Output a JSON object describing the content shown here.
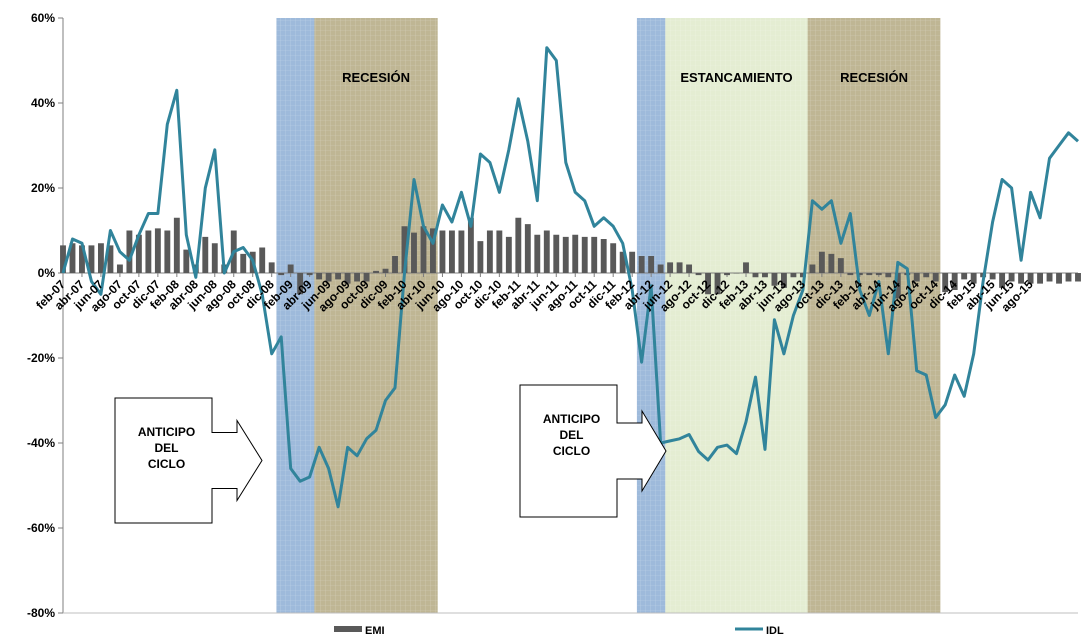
{
  "chart_data": {
    "type": "bar+line",
    "title": "",
    "xlabel": "",
    "ylabel": "",
    "ylim": [
      -0.8,
      0.6
    ],
    "y_ticks": [
      {
        "value": 0.6,
        "label": "60%"
      },
      {
        "value": 0.4,
        "label": "40%"
      },
      {
        "value": 0.2,
        "label": "20%"
      },
      {
        "value": 0.0,
        "label": "0%"
      },
      {
        "value": -0.2,
        "label": "-20%"
      },
      {
        "value": -0.4,
        "label": "-40%"
      },
      {
        "value": -0.6,
        "label": "-60%"
      },
      {
        "value": -0.8,
        "label": "-80%"
      }
    ],
    "x_start": "feb-07",
    "n_months": 108,
    "x_tick_labels": [
      "feb-07",
      "abr-07",
      "jun-07",
      "ago-07",
      "oct-07",
      "dic-07",
      "feb-08",
      "abr-08",
      "jun-08",
      "ago-08",
      "oct-08",
      "dic-08",
      "feb-09",
      "abr-09",
      "jun-09",
      "ago-09",
      "oct-09",
      "dic-09",
      "feb-10",
      "abr-10",
      "jun-10",
      "ago-10",
      "oct-10",
      "dic-10",
      "feb-11",
      "abr-11",
      "jun-11",
      "ago-11",
      "oct-11",
      "dic-11",
      "feb-12",
      "abr-12",
      "jun-12",
      "ago-12",
      "oct-12",
      "dic-12",
      "feb-13",
      "abr-13",
      "jun-13",
      "ago-13",
      "oct-13",
      "dic-13",
      "feb-14",
      "abr-14",
      "jun-14",
      "ago-14",
      "oct-14",
      "dic-14",
      "feb-15",
      "abr-15",
      "jun-15",
      "ago-15"
    ],
    "series": [
      {
        "name": "EMI",
        "kind": "bar",
        "color": "#595959",
        "values": [
          0.065,
          0.07,
          0.065,
          0.065,
          0.07,
          0.065,
          0.02,
          0.1,
          0.09,
          0.1,
          0.105,
          0.1,
          0.13,
          0.055,
          0.02,
          0.085,
          0.07,
          0.02,
          0.1,
          0.045,
          0.05,
          0.06,
          0.025,
          -0.005,
          0.02,
          -0.05,
          -0.005,
          -0.015,
          -0.02,
          -0.015,
          -0.025,
          -0.02,
          -0.02,
          0.005,
          0.01,
          0.04,
          0.11,
          0.095,
          0.11,
          0.105,
          0.1,
          0.1,
          0.1,
          0.13,
          0.075,
          0.1,
          0.1,
          0.085,
          0.13,
          0.115,
          0.09,
          0.1,
          0.09,
          0.085,
          0.09,
          0.085,
          0.085,
          0.08,
          0.07,
          0.05,
          0.05,
          0.04,
          0.04,
          0.02,
          0.025,
          0.025,
          0.02,
          -0.005,
          -0.05,
          -0.05,
          -0.005,
          0.0,
          0.025,
          -0.01,
          -0.01,
          -0.03,
          -0.035,
          -0.01,
          -0.01,
          0.02,
          0.05,
          0.045,
          0.035,
          -0.005,
          -0.005,
          -0.005,
          -0.005,
          -0.01,
          -0.06,
          -0.005,
          -0.02,
          -0.01,
          -0.02,
          -0.045,
          -0.04,
          -0.015,
          -0.025,
          -0.01,
          -0.015,
          -0.035,
          -0.02,
          -0.025,
          -0.025,
          -0.025,
          -0.02,
          -0.025,
          -0.02,
          -0.02,
          -0.01,
          -0.005,
          0.01,
          0.005,
          0.005,
          0.005
        ]
      },
      {
        "name": "IDL",
        "kind": "line",
        "color": "#31849b",
        "values": [
          0.0,
          0.08,
          0.07,
          -0.02,
          -0.05,
          0.1,
          0.05,
          0.03,
          0.09,
          0.14,
          0.14,
          0.35,
          0.43,
          0.09,
          -0.01,
          0.2,
          0.29,
          0.0,
          0.05,
          0.06,
          0.03,
          -0.05,
          -0.19,
          -0.15,
          -0.46,
          -0.49,
          -0.48,
          -0.41,
          -0.46,
          -0.55,
          -0.41,
          -0.43,
          -0.39,
          -0.37,
          -0.3,
          -0.27,
          0.0,
          0.22,
          0.11,
          0.07,
          0.16,
          0.12,
          0.19,
          0.11,
          0.28,
          0.26,
          0.19,
          0.29,
          0.41,
          0.31,
          0.17,
          0.53,
          0.5,
          0.26,
          0.19,
          0.17,
          0.11,
          0.13,
          0.11,
          0.07,
          -0.04,
          -0.21,
          -0.03,
          -0.4,
          -0.395,
          -0.39,
          -0.38,
          -0.42,
          -0.44,
          -0.41,
          -0.405,
          -0.425,
          -0.35,
          -0.245,
          -0.415,
          -0.11,
          -0.19,
          -0.1,
          -0.04,
          0.17,
          0.15,
          0.17,
          0.07,
          0.14,
          -0.04,
          -0.1,
          -0.02,
          -0.19,
          0.025,
          0.01,
          -0.23,
          -0.24,
          -0.34,
          -0.31,
          -0.24,
          -0.29,
          -0.19,
          -0.02,
          0.12,
          0.22,
          0.2,
          0.03,
          0.19,
          0.13,
          0.27,
          0.3,
          0.33,
          0.31
        ]
      }
    ],
    "bands": [
      {
        "start": 22.5,
        "end": 26.5,
        "color": "#4f81bd",
        "opacity": 0.55,
        "label": ""
      },
      {
        "start": 26.5,
        "end": 39.5,
        "color": "#8b7a3c",
        "opacity": 0.55,
        "label": "RECESIÓN"
      },
      {
        "start": 60.5,
        "end": 63.5,
        "color": "#4f81bd",
        "opacity": 0.55,
        "label": ""
      },
      {
        "start": 63.5,
        "end": 78.5,
        "color": "#c3d69b",
        "opacity": 0.45,
        "label": "ESTANCAMIENTO"
      },
      {
        "start": 78.5,
        "end": 92.5,
        "color": "#8b7a3c",
        "opacity": 0.55,
        "label": "RECESIÓN"
      }
    ],
    "annotations": [
      {
        "lines": [
          "ANTICIPO",
          "DEL",
          "CICLO"
        ]
      },
      {
        "lines": [
          "ANTICIPO",
          "DEL",
          "CICLO"
        ]
      }
    ],
    "legend": {
      "position": "bottom",
      "entries": [
        "EMI",
        "IDL"
      ]
    }
  }
}
